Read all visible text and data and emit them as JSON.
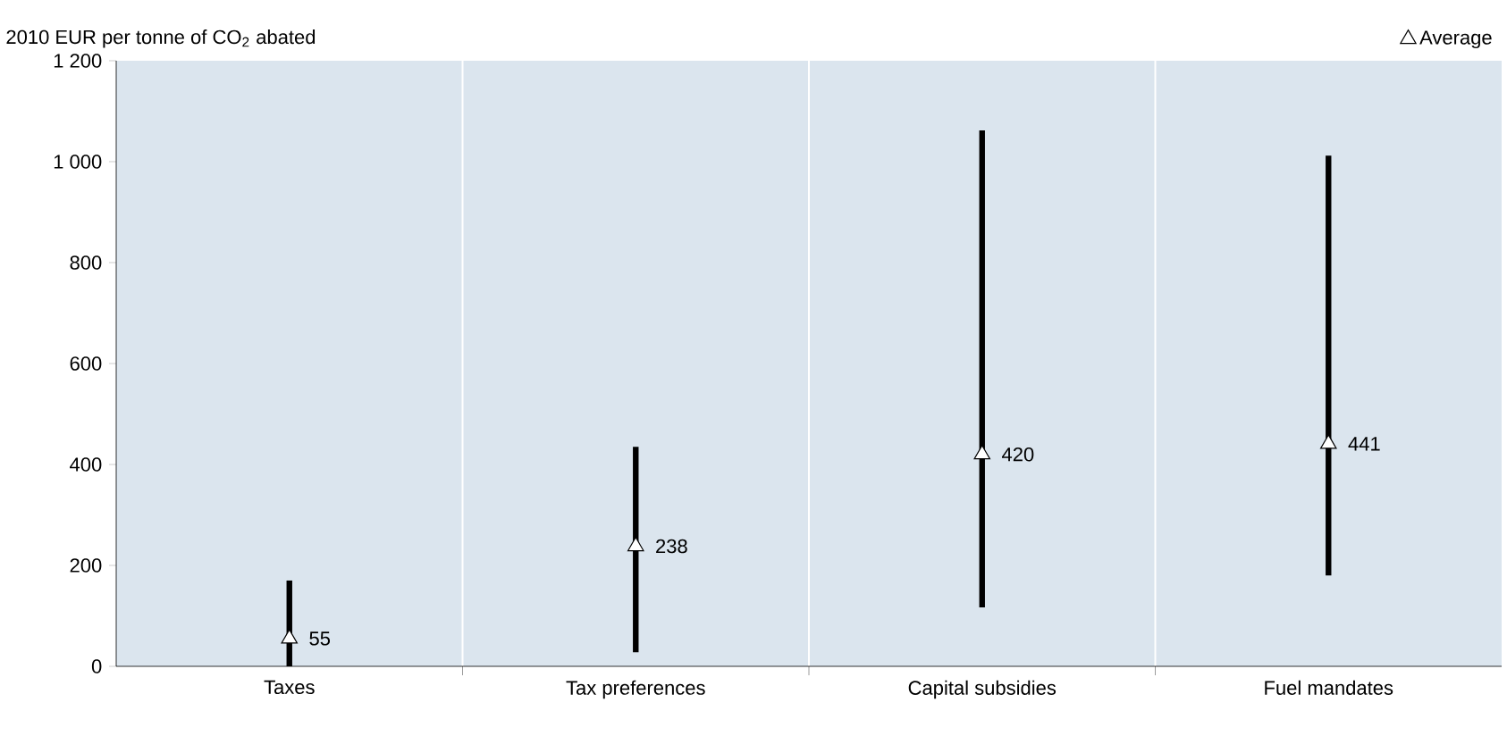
{
  "chart_data": {
    "type": "bar",
    "ylabel": "2010 EUR per tonne of CO$_{2}$ abated",
    "categories": [
      "Taxes",
      "Tax preferences",
      "Capital subsidies",
      "Fuel mandates"
    ],
    "series": [
      {
        "color": "#000000",
        "base": [
          0,
          28,
          117,
          180
        ],
        "values": [
          170,
          407,
          945,
          832
        ]
      },
      {
        "type": "scatter",
        "name": "Average",
        "color": "#000000",
        "marker": "triangle",
        "values": [
          55,
          238,
          420,
          441
        ],
        "value_labels": [
          "55",
          "238",
          "420",
          "441"
        ]
      }
    ],
    "ylim": [
      0,
      1200
    ],
    "yticks": [
      0,
      200,
      400,
      600,
      800,
      {
        "value": 1000,
        "label": "1 000"
      },
      {
        "value": 1200,
        "label": "1 200"
      }
    ],
    "grid": "x",
    "legend": "top right"
  }
}
